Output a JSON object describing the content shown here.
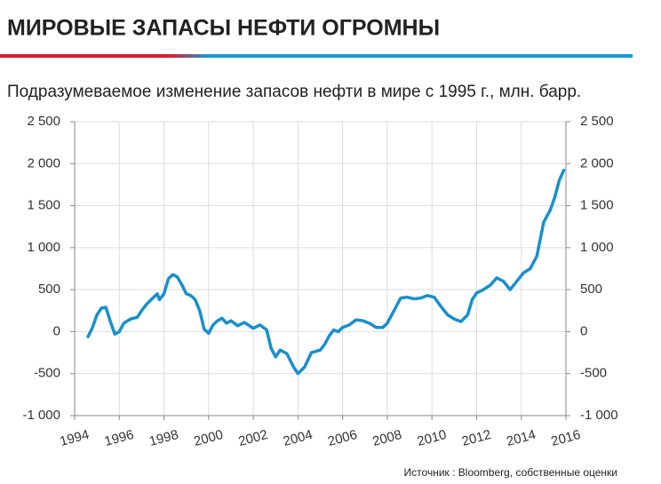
{
  "chart_data": {
    "type": "line",
    "title": "МИРОВЫЕ ЗАПАСЫ НЕФТИ ОГРОМНЫ",
    "subtitle": "Подразумеваемое изменение запасов нефти в мире с 1995 г., млн. барр.",
    "source": "Источник : Bloomberg, собственные оценки",
    "x": [
      1994.6,
      1994.8,
      1995.0,
      1995.2,
      1995.4,
      1995.6,
      1995.8,
      1996.0,
      1996.2,
      1996.5,
      1996.8,
      1997.0,
      1997.2,
      1997.5,
      1997.7,
      1997.8,
      1998.0,
      1998.2,
      1998.4,
      1998.6,
      1998.8,
      1999.0,
      1999.2,
      1999.4,
      1999.6,
      1999.8,
      2000.0,
      2000.2,
      2000.4,
      2000.6,
      2000.8,
      2001.0,
      2001.3,
      2001.6,
      2002.0,
      2002.3,
      2002.6,
      2002.8,
      2003.0,
      2003.2,
      2003.5,
      2003.8,
      2004.0,
      2004.3,
      2004.6,
      2005.0,
      2005.2,
      2005.4,
      2005.6,
      2005.8,
      2006.0,
      2006.3,
      2006.6,
      2006.9,
      2007.2,
      2007.5,
      2007.8,
      2008.0,
      2008.3,
      2008.6,
      2008.9,
      2009.2,
      2009.5,
      2009.8,
      2010.1,
      2010.4,
      2010.7,
      2011.0,
      2011.3,
      2011.6,
      2011.8,
      2012.0,
      2012.3,
      2012.6,
      2012.9,
      2013.2,
      2013.5,
      2013.8,
      2014.1,
      2014.4,
      2014.7,
      2015.0,
      2015.3,
      2015.5,
      2015.7,
      2015.9
    ],
    "series": [
      {
        "color": "#1a8fc9",
        "values": [
          -60,
          50,
          200,
          280,
          290,
          120,
          -30,
          0,
          100,
          150,
          170,
          250,
          320,
          400,
          450,
          380,
          450,
          630,
          680,
          650,
          560,
          450,
          430,
          380,
          250,
          30,
          -20,
          80,
          130,
          160,
          100,
          130,
          70,
          110,
          40,
          80,
          20,
          -200,
          -300,
          -220,
          -260,
          -420,
          -500,
          -420,
          -250,
          -220,
          -150,
          -50,
          20,
          0,
          50,
          80,
          140,
          130,
          100,
          50,
          50,
          100,
          250,
          400,
          410,
          390,
          400,
          430,
          410,
          300,
          200,
          150,
          120,
          200,
          380,
          460,
          500,
          550,
          640,
          600,
          500,
          600,
          700,
          750,
          900,
          1300,
          1450,
          1600,
          1800,
          1920
        ]
      }
    ],
    "xlim": [
      1994,
      2016
    ],
    "xticks": [
      1994,
      1996,
      1998,
      2000,
      2002,
      2004,
      2006,
      2008,
      2010,
      2012,
      2014,
      2016
    ],
    "ylim": [
      -1000,
      2500
    ],
    "yticks": [
      {
        "value": -1000,
        "label": "-1 000"
      },
      -500,
      0,
      500,
      {
        "value": 1000,
        "label": "1 000"
      },
      {
        "value": 1500,
        "label": "1 500"
      },
      {
        "value": 2000,
        "label": "2 000"
      },
      {
        "value": 2500,
        "label": "2 500"
      }
    ],
    "y2lim": [
      -1000,
      2500
    ],
    "y2ticks": [
      {
        "value": -1000,
        "label": "-1 000"
      },
      -500,
      0,
      500,
      {
        "value": 1000,
        "label": "1 000"
      },
      {
        "value": 1500,
        "label": "1 500"
      },
      {
        "value": 2000,
        "label": "2 000"
      },
      {
        "value": 2500,
        "label": "2 500"
      }
    ],
    "grid": true
  }
}
